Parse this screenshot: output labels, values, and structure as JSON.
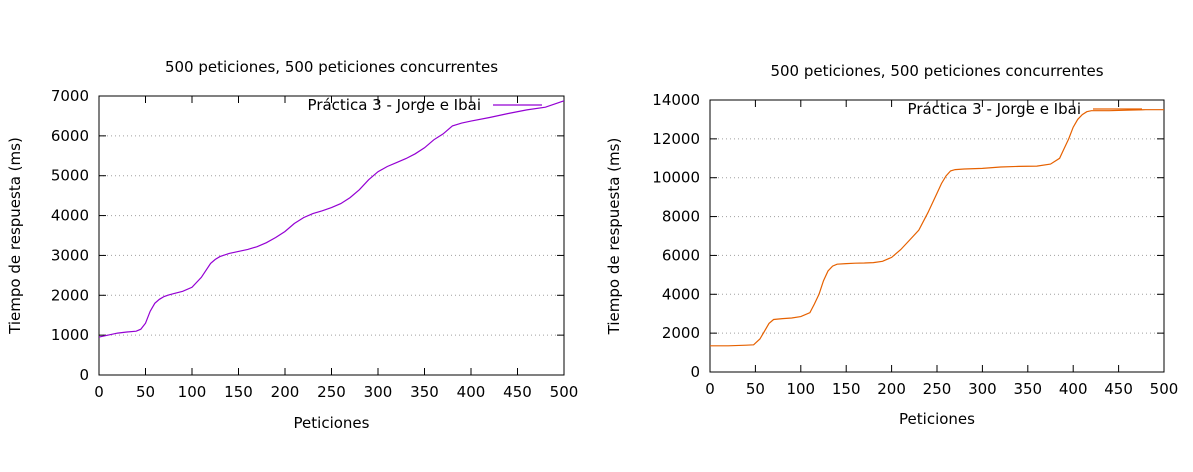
{
  "chart_data": [
    {
      "type": "line",
      "title": "500 peticiones, 500 peticiones concurrentes",
      "xlabel": "Peticiones",
      "ylabel": "Tiempo de respuesta (ms)",
      "xlim": [
        0,
        500
      ],
      "ylim": [
        0,
        7000
      ],
      "xticks": [
        0,
        50,
        100,
        150,
        200,
        250,
        300,
        350,
        400,
        450,
        500
      ],
      "yticks": [
        0,
        1000,
        2000,
        3000,
        4000,
        5000,
        6000,
        7000
      ],
      "grid": "horizontal dotted",
      "legend_position": "top-right",
      "color": "#9400d3",
      "series": [
        {
          "name": "Práctica 3 - Jorge e Ibai",
          "x": [
            0,
            10,
            20,
            30,
            40,
            45,
            50,
            55,
            60,
            65,
            70,
            75,
            80,
            90,
            100,
            110,
            120,
            125,
            130,
            140,
            150,
            160,
            170,
            180,
            190,
            200,
            210,
            220,
            230,
            240,
            250,
            260,
            270,
            280,
            290,
            300,
            310,
            320,
            330,
            340,
            350,
            360,
            370,
            380,
            390,
            400,
            420,
            440,
            460,
            480,
            500
          ],
          "y": [
            950,
            1000,
            1050,
            1080,
            1100,
            1150,
            1300,
            1600,
            1800,
            1900,
            1970,
            2010,
            2040,
            2100,
            2200,
            2450,
            2800,
            2900,
            2970,
            3050,
            3100,
            3150,
            3220,
            3320,
            3450,
            3600,
            3800,
            3950,
            4050,
            4120,
            4200,
            4300,
            4450,
            4650,
            4900,
            5100,
            5230,
            5330,
            5430,
            5550,
            5700,
            5900,
            6050,
            6250,
            6320,
            6370,
            6460,
            6560,
            6650,
            6720,
            6880
          ]
        }
      ]
    },
    {
      "type": "line",
      "title": "500 peticiones, 500 peticiones concurrentes",
      "xlabel": "Peticiones",
      "ylabel": "Tiempo de respuesta (ms)",
      "xlim": [
        0,
        500
      ],
      "ylim": [
        0,
        14000
      ],
      "xticks": [
        0,
        50,
        100,
        150,
        200,
        250,
        300,
        350,
        400,
        450,
        500
      ],
      "yticks": [
        0,
        2000,
        4000,
        6000,
        8000,
        10000,
        12000,
        14000
      ],
      "grid": "horizontal dotted",
      "legend_position": "top-right",
      "color": "#e66100",
      "series": [
        {
          "name": "Práctica 3 - Jorge e Ibai",
          "x": [
            0,
            20,
            40,
            48,
            55,
            60,
            65,
            70,
            80,
            90,
            100,
            110,
            115,
            120,
            125,
            130,
            135,
            140,
            150,
            160,
            170,
            180,
            190,
            200,
            210,
            220,
            230,
            240,
            250,
            255,
            260,
            265,
            270,
            280,
            300,
            320,
            340,
            360,
            375,
            385,
            390,
            395,
            400,
            405,
            410,
            415,
            420,
            440,
            460,
            480,
            500
          ],
          "y": [
            1350,
            1350,
            1380,
            1400,
            1700,
            2100,
            2500,
            2700,
            2750,
            2780,
            2850,
            3050,
            3500,
            4000,
            4700,
            5200,
            5450,
            5550,
            5580,
            5600,
            5610,
            5630,
            5700,
            5900,
            6300,
            6800,
            7300,
            8200,
            9200,
            9700,
            10100,
            10350,
            10420,
            10450,
            10480,
            10550,
            10580,
            10600,
            10700,
            11000,
            11500,
            12000,
            12600,
            13000,
            13250,
            13400,
            13450,
            13450,
            13480,
            13500,
            13500
          ]
        }
      ]
    }
  ]
}
